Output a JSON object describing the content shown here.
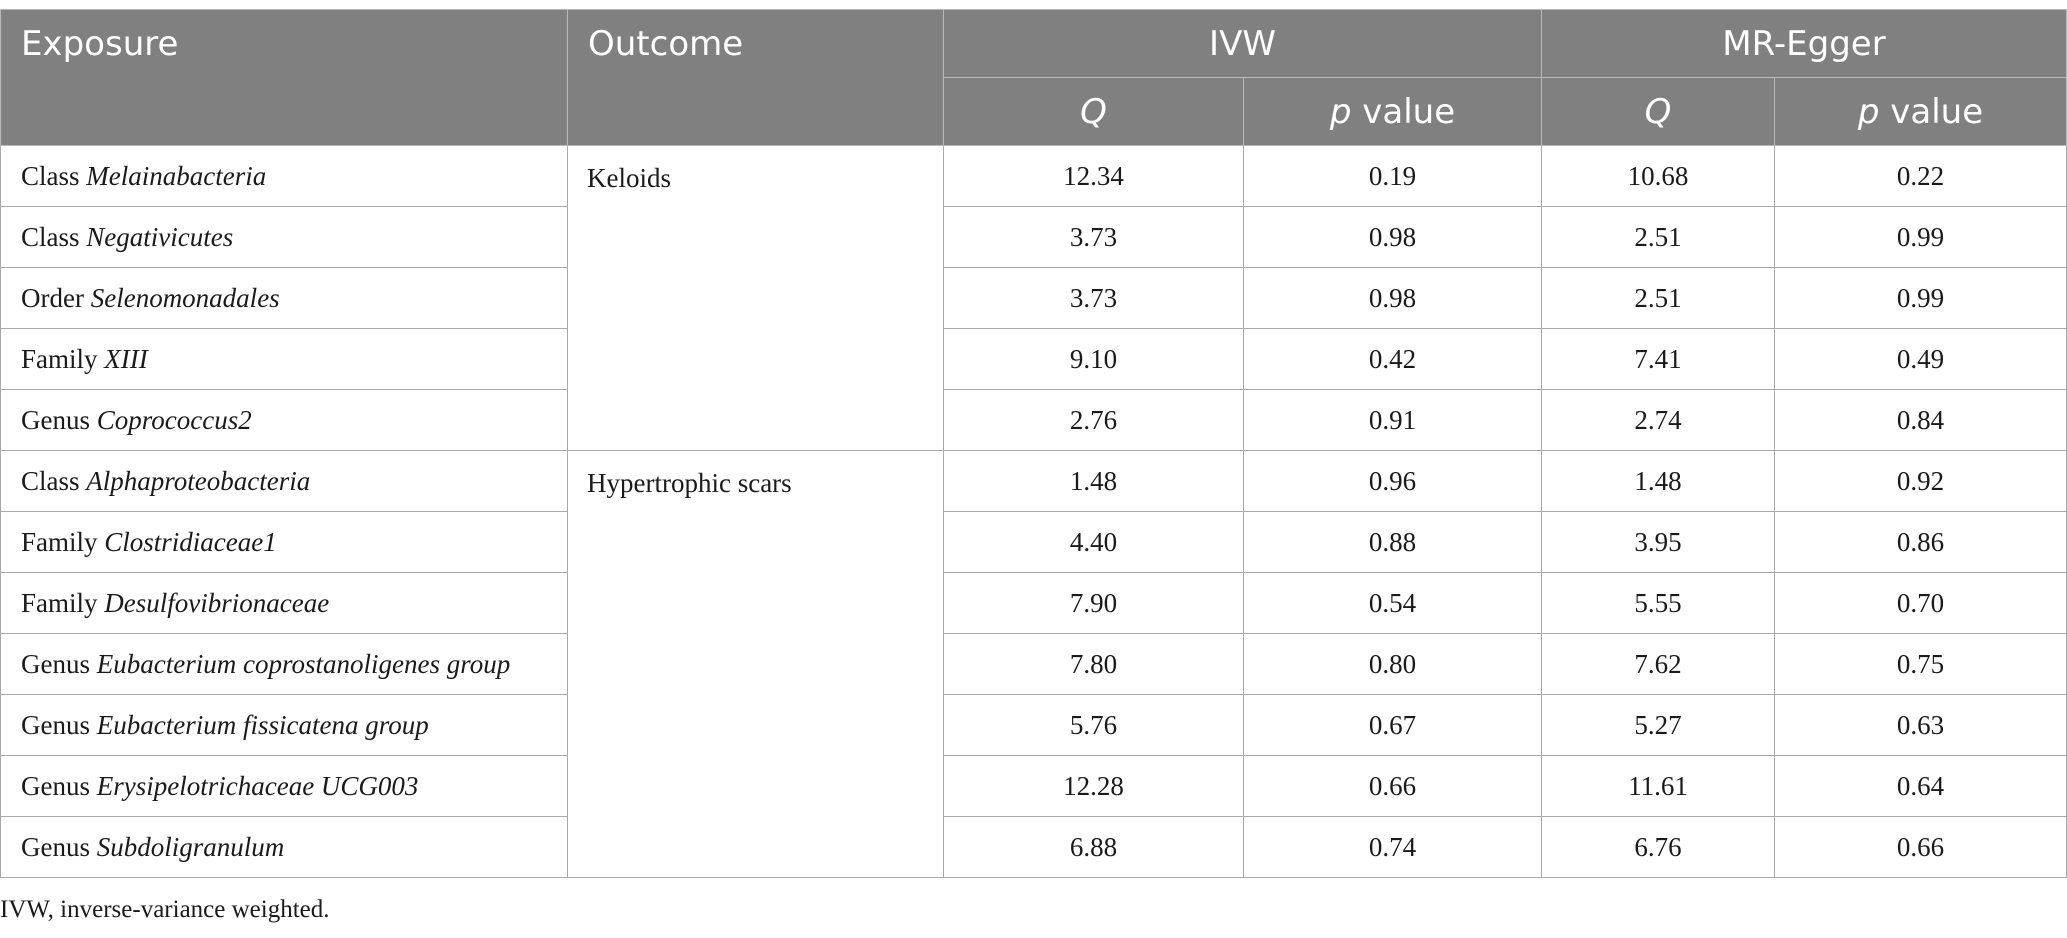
{
  "header": {
    "exposure": "Exposure",
    "outcome": "Outcome",
    "ivw": "IVW",
    "mr_egger": "MR-Egger",
    "q": "Q",
    "p_italic": "p",
    "p_suffix": " value"
  },
  "groups": [
    {
      "outcome": "Keloids",
      "rows": [
        {
          "rank": "Class",
          "taxon": "Melainabacteria",
          "ivw_q": "12.34",
          "ivw_p": "0.19",
          "egger_q": "10.68",
          "egger_p": "0.22"
        },
        {
          "rank": "Class",
          "taxon": "Negativicutes",
          "ivw_q": "3.73",
          "ivw_p": "0.98",
          "egger_q": "2.51",
          "egger_p": "0.99"
        },
        {
          "rank": "Order",
          "taxon": "Selenomonadales",
          "ivw_q": "3.73",
          "ivw_p": "0.98",
          "egger_q": "2.51",
          "egger_p": "0.99"
        },
        {
          "rank": "Family",
          "taxon": "XIII",
          "ivw_q": "9.10",
          "ivw_p": "0.42",
          "egger_q": "7.41",
          "egger_p": "0.49"
        },
        {
          "rank": "Genus",
          "taxon": "Coprococcus2",
          "ivw_q": "2.76",
          "ivw_p": "0.91",
          "egger_q": "2.74",
          "egger_p": "0.84"
        }
      ]
    },
    {
      "outcome": "Hypertrophic scars",
      "rows": [
        {
          "rank": "Class",
          "taxon": "Alphaproteobacteria",
          "ivw_q": "1.48",
          "ivw_p": "0.96",
          "egger_q": "1.48",
          "egger_p": "0.92"
        },
        {
          "rank": "Family",
          "taxon": "Clostridiaceae1",
          "ivw_q": "4.40",
          "ivw_p": "0.88",
          "egger_q": "3.95",
          "egger_p": "0.86"
        },
        {
          "rank": "Family",
          "taxon": "Desulfovibrionaceae",
          "ivw_q": "7.90",
          "ivw_p": "0.54",
          "egger_q": "5.55",
          "egger_p": "0.70"
        },
        {
          "rank": "Genus",
          "taxon": "Eubacterium coprostanoligenes group",
          "ivw_q": "7.80",
          "ivw_p": "0.80",
          "egger_q": "7.62",
          "egger_p": "0.75"
        },
        {
          "rank": "Genus",
          "taxon": "Eubacterium fissicatena group",
          "ivw_q": "5.76",
          "ivw_p": "0.67",
          "egger_q": "5.27",
          "egger_p": "0.63"
        },
        {
          "rank": "Genus",
          "taxon": "Erysipelotrichaceae UCG003",
          "ivw_q": "12.28",
          "ivw_p": "0.66",
          "egger_q": "11.61",
          "egger_p": "0.64"
        },
        {
          "rank": "Genus",
          "taxon": "Subdoligranulum",
          "ivw_q": "6.88",
          "ivw_p": "0.74",
          "egger_q": "6.76",
          "egger_p": "0.66"
        }
      ]
    }
  ],
  "footnote": "IVW, inverse-variance weighted."
}
